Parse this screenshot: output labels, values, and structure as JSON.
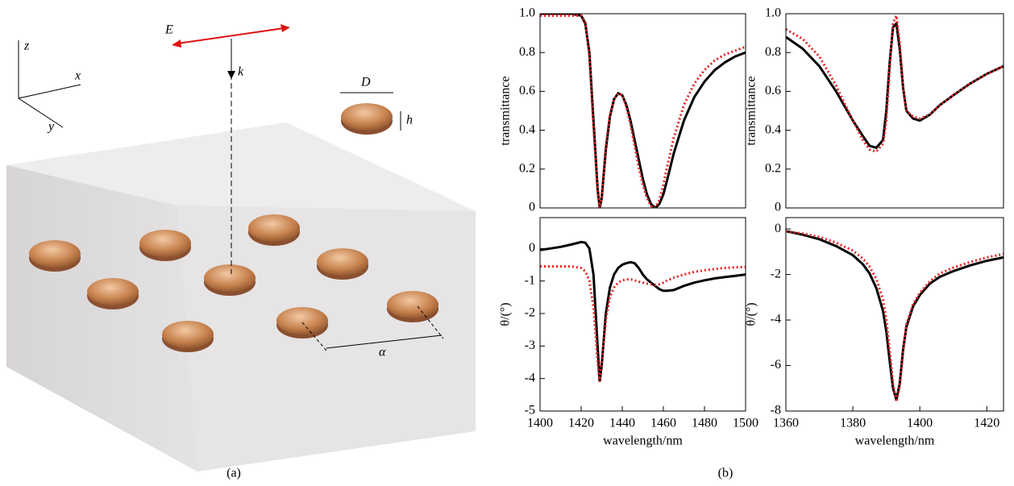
{
  "diagram": {
    "E": "E",
    "k": "k",
    "x": "x",
    "y": "y",
    "z": "z",
    "D": "D",
    "h": "h",
    "alpha": "α",
    "label": "(a)"
  },
  "panel_label": "(b)",
  "chart_data": [
    {
      "type": "line",
      "ylabel": "transmittance",
      "xlim": [
        1400,
        1500
      ],
      "ylim": [
        0,
        1
      ],
      "yticks": [
        0,
        0.2,
        0.4,
        0.6,
        0.8,
        {
          "value": 1,
          "label": "1.0"
        }
      ],
      "x": [
        1400,
        1405,
        1410,
        1415,
        1420,
        1422,
        1424,
        1426,
        1428,
        1429,
        1430,
        1432,
        1434,
        1436,
        1438,
        1440,
        1442,
        1444,
        1446,
        1448,
        1450,
        1452,
        1454,
        1456,
        1458,
        1460,
        1462,
        1465,
        1470,
        1475,
        1480,
        1485,
        1490,
        1495,
        1500
      ],
      "series": [
        {
          "color": "#000000",
          "linestyle": "solid",
          "values": [
            1,
            1,
            1,
            1,
            0.99,
            0.95,
            0.8,
            0.45,
            0.1,
            0,
            0.05,
            0.3,
            0.47,
            0.56,
            0.59,
            0.58,
            0.53,
            0.45,
            0.35,
            0.25,
            0.15,
            0.07,
            0.02,
            0,
            0.02,
            0.07,
            0.15,
            0.28,
            0.45,
            0.57,
            0.65,
            0.71,
            0.75,
            0.78,
            0.8
          ]
        },
        {
          "color": "#e52222",
          "linestyle": "dotted",
          "values": [
            0.99,
            0.99,
            0.99,
            0.99,
            0.99,
            0.96,
            0.78,
            0.42,
            0.08,
            0,
            0.06,
            0.32,
            0.48,
            0.56,
            0.59,
            0.58,
            0.52,
            0.43,
            0.32,
            0.21,
            0.12,
            0.05,
            0.01,
            0,
            0.04,
            0.12,
            0.22,
            0.36,
            0.53,
            0.64,
            0.71,
            0.76,
            0.79,
            0.81,
            0.83
          ]
        }
      ]
    },
    {
      "type": "line",
      "ylabel": "transmittance",
      "xlim": [
        1360,
        1425
      ],
      "ylim": [
        0,
        1
      ],
      "yticks": [
        0,
        0.2,
        0.4,
        0.6,
        0.8,
        {
          "value": 1,
          "label": "1.0"
        }
      ],
      "x": [
        1360,
        1365,
        1370,
        1375,
        1380,
        1383,
        1385,
        1387,
        1389,
        1390,
        1391,
        1392,
        1393,
        1394,
        1395,
        1396,
        1398,
        1400,
        1403,
        1406,
        1410,
        1415,
        1420,
        1425
      ],
      "series": [
        {
          "color": "#000000",
          "linestyle": "solid",
          "values": [
            0.88,
            0.82,
            0.73,
            0.6,
            0.45,
            0.37,
            0.32,
            0.31,
            0.35,
            0.5,
            0.75,
            0.93,
            0.95,
            0.82,
            0.62,
            0.5,
            0.46,
            0.45,
            0.48,
            0.53,
            0.58,
            0.64,
            0.69,
            0.73
          ]
        },
        {
          "color": "#e52222",
          "linestyle": "dotted",
          "values": [
            0.92,
            0.87,
            0.78,
            0.63,
            0.45,
            0.35,
            0.3,
            0.29,
            0.33,
            0.45,
            0.72,
            0.95,
            0.99,
            0.85,
            0.62,
            0.5,
            0.47,
            0.46,
            0.48,
            0.53,
            0.58,
            0.64,
            0.69,
            0.73
          ]
        }
      ]
    },
    {
      "type": "line",
      "ylabel": "θ/(°)",
      "xlabel": "wavelength/nm",
      "xlim": [
        1400,
        1500
      ],
      "ylim": [
        -5,
        0.95
      ],
      "xticks": [
        1400,
        1420,
        1440,
        1460,
        1480,
        1500
      ],
      "yticks": [
        -5,
        -4,
        -3,
        -2,
        -1,
        0
      ],
      "x": [
        1400,
        1405,
        1410,
        1415,
        1420,
        1422,
        1424,
        1426,
        1428,
        1429,
        1430,
        1432,
        1434,
        1436,
        1438,
        1440,
        1442,
        1444,
        1446,
        1448,
        1450,
        1452,
        1454,
        1456,
        1458,
        1460,
        1462,
        1465,
        1470,
        1475,
        1480,
        1485,
        1490,
        1495,
        1500
      ],
      "series": [
        {
          "color": "#000000",
          "linestyle": "solid",
          "values": [
            -0.05,
            0,
            0.05,
            0.12,
            0.2,
            0.18,
            0,
            -0.8,
            -3,
            -4.1,
            -3.6,
            -2,
            -1.2,
            -0.8,
            -0.6,
            -0.5,
            -0.45,
            -0.42,
            -0.45,
            -0.6,
            -0.8,
            -0.95,
            -1.05,
            -1.15,
            -1.25,
            -1.3,
            -1.3,
            -1.28,
            -1.15,
            -1.05,
            -0.98,
            -0.92,
            -0.88,
            -0.84,
            -0.8
          ]
        },
        {
          "color": "#e52222",
          "linestyle": "dotted",
          "values": [
            -0.55,
            -0.55,
            -0.55,
            -0.55,
            -0.6,
            -0.7,
            -1,
            -1.8,
            -3.5,
            -4.1,
            -3.5,
            -2.2,
            -1.5,
            -1.2,
            -1.05,
            -0.98,
            -0.95,
            -0.95,
            -0.98,
            -1.02,
            -1.05,
            -1.08,
            -1.1,
            -1.12,
            -1.1,
            -1.05,
            -0.98,
            -0.9,
            -0.8,
            -0.72,
            -0.67,
            -0.63,
            -0.6,
            -0.58,
            -0.57
          ]
        }
      ]
    },
    {
      "type": "line",
      "ylabel": "θ/(°)",
      "xlabel": "wavelength/nm",
      "xlim": [
        1360,
        1425
      ],
      "ylim": [
        -8,
        0.5
      ],
      "xticks": [
        1360,
        1380,
        1400,
        1420
      ],
      "yticks": [
        -8,
        -6,
        -4,
        -2,
        0
      ],
      "x": [
        1360,
        1365,
        1370,
        1375,
        1380,
        1383,
        1385,
        1387,
        1389,
        1390,
        1391,
        1392,
        1393,
        1394,
        1395,
        1396,
        1398,
        1400,
        1403,
        1406,
        1410,
        1415,
        1420,
        1425
      ],
      "series": [
        {
          "color": "#000000",
          "linestyle": "solid",
          "values": [
            -0.1,
            -0.25,
            -0.45,
            -0.75,
            -1.15,
            -1.55,
            -1.95,
            -2.6,
            -3.6,
            -4.5,
            -5.8,
            -7,
            -7.5,
            -6.8,
            -5.3,
            -4.3,
            -3.4,
            -2.9,
            -2.4,
            -2.1,
            -1.85,
            -1.6,
            -1.4,
            -1.25
          ]
        },
        {
          "color": "#e52222",
          "linestyle": "dotted",
          "values": [
            -0.1,
            -0.2,
            -0.35,
            -0.6,
            -0.95,
            -1.3,
            -1.65,
            -2.2,
            -3.1,
            -4,
            -5.3,
            -6.8,
            -7.6,
            -6.9,
            -5.4,
            -4.2,
            -3.3,
            -2.8,
            -2.3,
            -1.95,
            -1.7,
            -1.45,
            -1.25,
            -1.1
          ]
        }
      ]
    }
  ]
}
